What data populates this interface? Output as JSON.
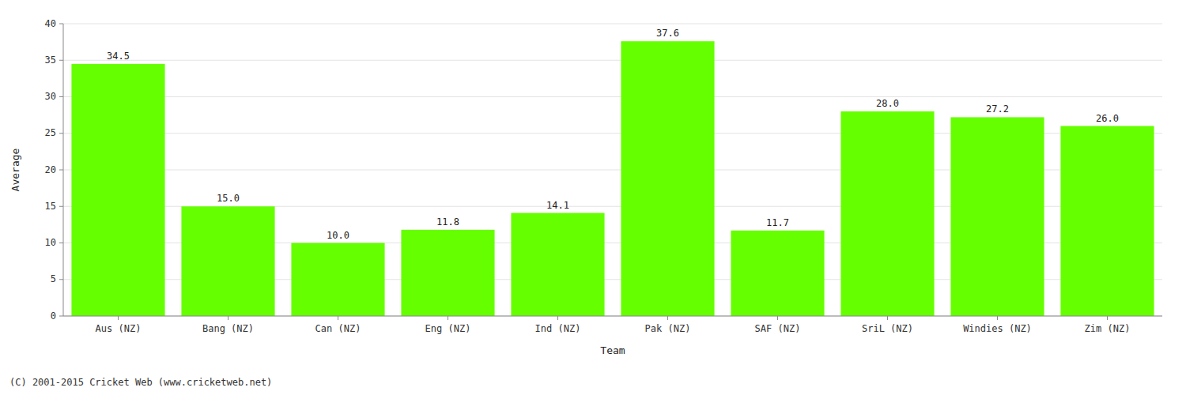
{
  "chart_data": {
    "type": "bar",
    "categories": [
      "Aus (NZ)",
      "Bang (NZ)",
      "Can (NZ)",
      "Eng (NZ)",
      "Ind (NZ)",
      "Pak (NZ)",
      "SAF (NZ)",
      "SriL (NZ)",
      "Windies (NZ)",
      "Zim (NZ)"
    ],
    "values": [
      34.5,
      15.0,
      10.0,
      11.8,
      14.1,
      37.6,
      11.7,
      28.0,
      27.2,
      26.0
    ],
    "value_labels": [
      "34.5",
      "15.0",
      "10.0",
      "11.8",
      "14.1",
      "37.6",
      "11.7",
      "28.0",
      "27.2",
      "26.0"
    ],
    "data_labels": true,
    "color": "#66ff00",
    "xlabel": "Team",
    "ylabel": "Average",
    "ylim": [
      0,
      40
    ],
    "yticks": [
      0,
      5,
      10,
      15,
      20,
      25,
      30,
      35,
      40
    ],
    "grid": true,
    "annotations": [
      "(C) 2001-2015 Cricket Web (www.cricketweb.net)"
    ]
  }
}
